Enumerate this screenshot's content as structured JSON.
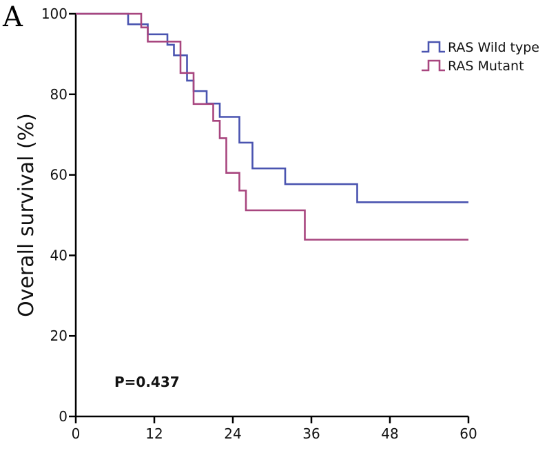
{
  "panel_label": "A",
  "chart_data": {
    "type": "line",
    "step": "post",
    "ylabel": "Overall survival (%)",
    "xlabel": "",
    "xlim": [
      0,
      60
    ],
    "ylim": [
      0,
      100
    ],
    "xticks": [
      0,
      12,
      24,
      36,
      48,
      60
    ],
    "yticks": [
      0,
      20,
      40,
      60,
      80,
      100
    ],
    "grid": false,
    "legend_position": "top-right",
    "annotation": "P=0.437",
    "series": [
      {
        "name": "RAS Wild type",
        "color": "#4a54b0",
        "x": [
          0,
          8,
          10,
          11,
          14,
          15,
          16,
          17,
          18,
          20,
          22,
          23,
          25,
          27,
          32,
          43,
          60
        ],
        "y": [
          100,
          97.4,
          97.4,
          94.9,
          92.3,
          89.7,
          89.7,
          83.4,
          80.8,
          77.7,
          74.4,
          74.4,
          68,
          61.6,
          57.7,
          53.2,
          53.2
        ]
      },
      {
        "name": "RAS Mutant",
        "color": "#a8467f",
        "x": [
          0,
          10,
          11,
          16,
          17,
          18,
          21,
          22,
          23,
          25,
          26,
          35,
          60
        ],
        "y": [
          100,
          96.6,
          93.1,
          85.3,
          85.3,
          77.6,
          73.4,
          69.1,
          60.5,
          56.1,
          51.2,
          43.9,
          43.9
        ]
      }
    ]
  }
}
